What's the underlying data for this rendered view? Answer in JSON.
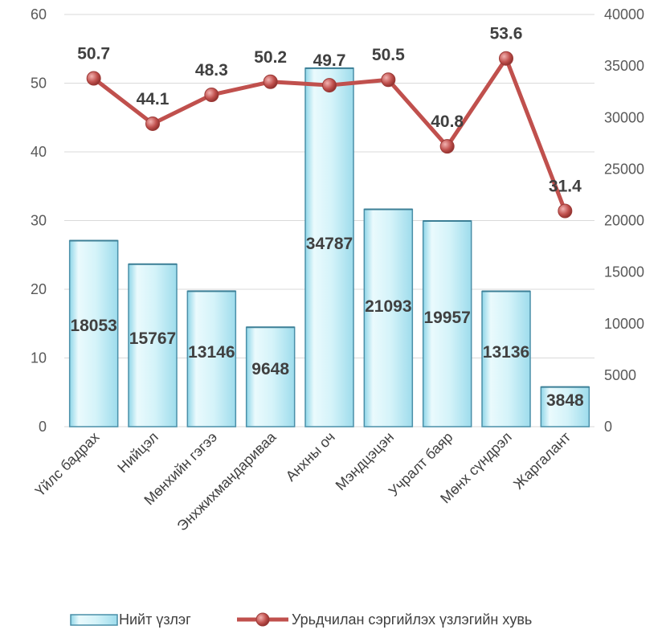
{
  "chart_data": {
    "type": "bar",
    "categories": [
      "Үйлс бадрах",
      "Нийцэл",
      "Мөнхийн гэгээ",
      "Энхжихмандариваа",
      "Анхны оч",
      "Мэндцэцэн",
      "Учралт баяр",
      "Мөнх сүндрэл",
      "Жаргалант"
    ],
    "series": [
      {
        "name": "Нийт үзлэг",
        "type": "bar",
        "axis": "right",
        "values": [
          18053,
          15767,
          13146,
          9648,
          34787,
          21093,
          19957,
          13136,
          3848
        ]
      },
      {
        "name": "Урьдчилан сэргийлэх үзлэгийн хувь",
        "type": "line",
        "axis": "left",
        "values": [
          50.7,
          44.1,
          48.3,
          50.2,
          49.7,
          50.5,
          40.8,
          53.6,
          31.4
        ]
      }
    ],
    "left_axis": {
      "min": 0,
      "max": 60,
      "ticks": [
        0,
        10,
        20,
        30,
        40,
        50,
        60
      ]
    },
    "right_axis": {
      "min": 0,
      "max": 40000,
      "ticks": [
        0,
        5000,
        10000,
        15000,
        20000,
        25000,
        30000,
        35000,
        40000
      ]
    },
    "grid": true,
    "legend_position": "bottom",
    "colors": {
      "bar_fill_top": "#eafafd",
      "bar_fill_bottom": "#a8e4f0",
      "bar_stroke": "#4a8fa8",
      "line": "#c0504d",
      "marker": "#c0504d",
      "grid": "#d9d9d9"
    }
  }
}
